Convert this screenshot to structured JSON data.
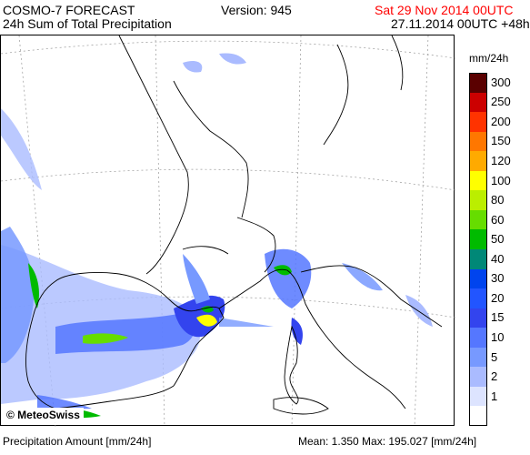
{
  "header": {
    "model": "COSMO-7 FORECAST",
    "product": "24h Sum of Total Precipitation",
    "version": "Version: 945",
    "valid_time": "Sat 29 Nov 2014 00UTC",
    "run_time": "27.11.2014 00UTC +48h"
  },
  "legend": {
    "unit": "mm/24h",
    "items": [
      {
        "label": "300",
        "color": "#5a0000"
      },
      {
        "label": "250",
        "color": "#cc0000"
      },
      {
        "label": "200",
        "color": "#ff3300"
      },
      {
        "label": "150",
        "color": "#ff7700"
      },
      {
        "label": "120",
        "color": "#ffaa00"
      },
      {
        "label": "100",
        "color": "#ffff00"
      },
      {
        "label": "80",
        "color": "#bbee00"
      },
      {
        "label": "60",
        "color": "#66dd00"
      },
      {
        "label": "50",
        "color": "#00bb00"
      },
      {
        "label": "40",
        "color": "#008877"
      },
      {
        "label": "30",
        "color": "#0044ee"
      },
      {
        "label": "20",
        "color": "#2255ff"
      },
      {
        "label": "15",
        "color": "#3344ee"
      },
      {
        "label": "10",
        "color": "#5577ff"
      },
      {
        "label": "5",
        "color": "#7799ff"
      },
      {
        "label": "2",
        "color": "#aabbff"
      },
      {
        "label": "1",
        "color": "#dde4ff"
      },
      {
        "label": "",
        "color": "#ffffff"
      }
    ]
  },
  "map": {
    "copyright": "© MeteoSwiss"
  },
  "footer": {
    "amount_label": "Precipitation Amount [mm/24h]",
    "stats": "Mean:   1.350 Max: 195.027 [mm/24h]"
  },
  "colors": {
    "valid_time": "#ff0000",
    "coast": "#000000",
    "grid": "#999999"
  }
}
